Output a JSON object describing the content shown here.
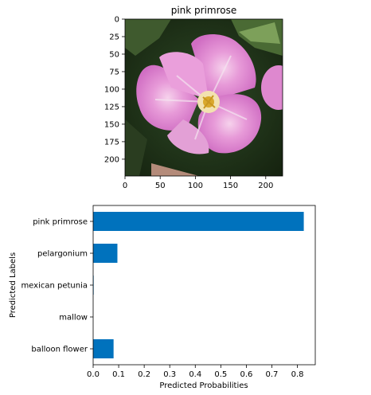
{
  "chart_data": [
    {
      "type": "image",
      "title": "pink primrose",
      "xlim": [
        0,
        224
      ],
      "ylim": [
        224,
        0
      ],
      "xticks": [
        "0",
        "50",
        "100",
        "150",
        "200"
      ],
      "yticks": [
        "0",
        "25",
        "50",
        "75",
        "100",
        "125",
        "150",
        "175",
        "200"
      ],
      "image_content": "pink-primrose-flower-photo"
    },
    {
      "type": "bar",
      "orientation": "horizontal",
      "categories": [
        "pink primrose",
        "pelargonium",
        "mexican petunia",
        "mallow",
        "balloon flower"
      ],
      "values": [
        0.825,
        0.095,
        0.002,
        0.0,
        0.08
      ],
      "xlabel": "Predicted Probabilities",
      "ylabel": "Predicted Labels",
      "xlim": [
        0.0,
        0.87
      ],
      "xticks": [
        "0.0",
        "0.1",
        "0.2",
        "0.3",
        "0.4",
        "0.5",
        "0.6",
        "0.7",
        "0.8"
      ],
      "bar_color": "#0072bd",
      "grid": false
    }
  ]
}
